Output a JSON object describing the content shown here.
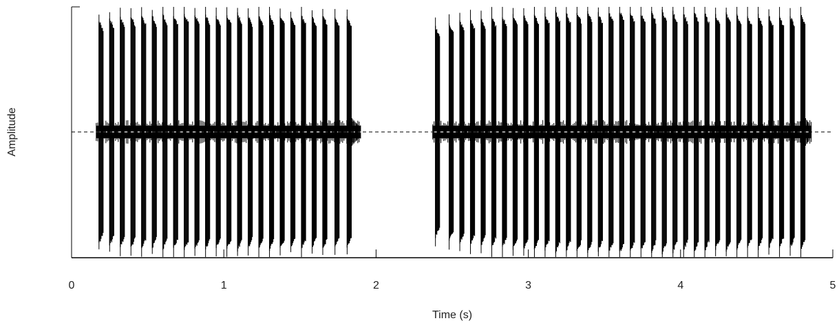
{
  "chart_data": {
    "type": "line",
    "chart_kind": "audio-waveform",
    "xlabel": "Time (s)",
    "ylabel": "Amplitude",
    "xlim": [
      0,
      5
    ],
    "ylim": [
      -1,
      1
    ],
    "xticks": [
      0,
      1,
      2,
      3,
      4,
      5
    ],
    "xtick_labels": [
      "0",
      "1",
      "2",
      "3",
      "4",
      "5"
    ],
    "yticks_shown": false,
    "zero_line": "dashed",
    "grid": false,
    "legend": "none",
    "waveform_color": "#000000",
    "series": [
      {
        "segment": 1,
        "pulse_times": [
          0.18,
          0.25,
          0.32,
          0.39,
          0.46,
          0.53,
          0.6,
          0.67,
          0.74,
          0.81,
          0.88,
          0.95,
          1.02,
          1.09,
          1.16,
          1.23,
          1.3,
          1.37,
          1.44,
          1.51,
          1.58,
          1.65,
          1.73,
          1.81
        ],
        "pulse_peak": [
          0.9,
          0.92,
          0.93,
          0.94,
          0.95,
          0.94,
          0.95,
          0.94,
          0.96,
          0.95,
          0.95,
          0.94,
          0.95,
          0.96,
          0.94,
          0.95,
          0.96,
          0.95,
          0.93,
          0.95,
          0.94,
          0.95,
          0.94,
          0.93
        ],
        "baseline_noise": 0.05,
        "tail_end": 1.9
      },
      {
        "segment": 2,
        "pulse_times": [
          2.39,
          2.48,
          2.55,
          2.62,
          2.69,
          2.76,
          2.83,
          2.9,
          2.97,
          3.04,
          3.11,
          3.18,
          3.25,
          3.32,
          3.39,
          3.46,
          3.53,
          3.6,
          3.67,
          3.74,
          3.81,
          3.88,
          3.95,
          4.02,
          4.09,
          4.16,
          4.23,
          4.3,
          4.37,
          4.44,
          4.51,
          4.58,
          4.65,
          4.72,
          4.79
        ],
        "pulse_peak": [
          0.85,
          0.88,
          0.9,
          0.91,
          0.92,
          0.93,
          0.94,
          0.95,
          0.95,
          0.96,
          0.95,
          0.97,
          0.96,
          0.97,
          0.98,
          0.96,
          0.97,
          0.98,
          0.97,
          0.96,
          0.97,
          0.98,
          0.97,
          0.96,
          0.97,
          0.96,
          0.95,
          0.96,
          0.95,
          0.94,
          0.95,
          0.94,
          0.93,
          0.94,
          0.95
        ],
        "baseline_noise": 0.05,
        "tail_end": 4.86
      }
    ]
  }
}
